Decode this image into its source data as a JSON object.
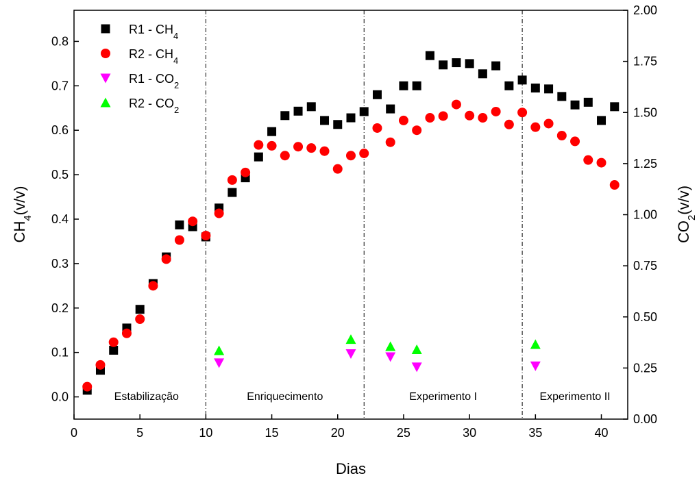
{
  "chart_data": {
    "type": "scatter",
    "xlabel": "Dias",
    "ylabel_left": "CH4(v/v)",
    "ylabel_right": "CO2(v/v)",
    "xlim": [
      0,
      42
    ],
    "ylim_left": [
      -0.05,
      0.87
    ],
    "ylim_right": [
      0,
      2.0
    ],
    "x_ticks": [
      0,
      5,
      10,
      15,
      20,
      25,
      30,
      35,
      40
    ],
    "y_left_ticks": [
      "0.0",
      "0.1",
      "0.2",
      "0.3",
      "0.4",
      "0.5",
      "0.6",
      "0.7",
      "0.8"
    ],
    "y_right_ticks": [
      "0.00",
      "0.25",
      "0.50",
      "0.75",
      "1.00",
      "1.25",
      "1.50",
      "1.75",
      "2.00"
    ],
    "legend_position": "top-left",
    "phase_dividers": [
      10,
      22,
      34
    ],
    "phases": [
      {
        "label": "Estabilização",
        "x": 5.5
      },
      {
        "label": "Enriquecimento",
        "x": 16
      },
      {
        "label": "Experimento I",
        "x": 28
      },
      {
        "label": "Experimento II",
        "x": 38
      }
    ],
    "series": [
      {
        "name": "R1 - CH4",
        "axis": "left",
        "marker": "square",
        "color": "#000000",
        "points": [
          [
            1,
            0.015
          ],
          [
            2,
            0.06
          ],
          [
            3,
            0.105
          ],
          [
            4,
            0.155
          ],
          [
            5,
            0.197
          ],
          [
            6,
            0.255
          ],
          [
            7,
            0.315
          ],
          [
            8,
            0.387
          ],
          [
            9,
            0.383
          ],
          [
            10,
            0.36
          ],
          [
            11,
            0.425
          ],
          [
            12,
            0.46
          ],
          [
            13,
            0.493
          ],
          [
            14,
            0.54
          ],
          [
            15,
            0.597
          ],
          [
            16,
            0.633
          ],
          [
            17,
            0.643
          ],
          [
            18,
            0.653
          ],
          [
            19,
            0.622
          ],
          [
            20,
            0.613
          ],
          [
            21,
            0.628
          ],
          [
            22,
            0.642
          ],
          [
            23,
            0.68
          ],
          [
            24,
            0.648
          ],
          [
            25,
            0.7
          ],
          [
            26,
            0.7
          ],
          [
            27,
            0.768
          ],
          [
            28,
            0.747
          ],
          [
            29,
            0.752
          ],
          [
            30,
            0.75
          ],
          [
            31,
            0.727
          ],
          [
            32,
            0.745
          ],
          [
            33,
            0.7
          ],
          [
            34,
            0.713
          ],
          [
            35,
            0.695
          ],
          [
            36,
            0.693
          ],
          [
            37,
            0.676
          ],
          [
            38,
            0.657
          ],
          [
            39,
            0.663
          ],
          [
            40,
            0.622
          ],
          [
            41,
            0.653
          ]
        ]
      },
      {
        "name": "R2 - CH4",
        "axis": "left",
        "marker": "circle",
        "color": "#ff0000",
        "points": [
          [
            1,
            0.023
          ],
          [
            2,
            0.072
          ],
          [
            3,
            0.123
          ],
          [
            4,
            0.143
          ],
          [
            5,
            0.175
          ],
          [
            6,
            0.25
          ],
          [
            7,
            0.31
          ],
          [
            8,
            0.353
          ],
          [
            9,
            0.395
          ],
          [
            10,
            0.363
          ],
          [
            11,
            0.413
          ],
          [
            12,
            0.488
          ],
          [
            13,
            0.505
          ],
          [
            14,
            0.567
          ],
          [
            15,
            0.565
          ],
          [
            16,
            0.543
          ],
          [
            17,
            0.563
          ],
          [
            18,
            0.56
          ],
          [
            19,
            0.553
          ],
          [
            20,
            0.513
          ],
          [
            21,
            0.543
          ],
          [
            22,
            0.548
          ],
          [
            23,
            0.605
          ],
          [
            24,
            0.573
          ],
          [
            25,
            0.622
          ],
          [
            26,
            0.6
          ],
          [
            27,
            0.628
          ],
          [
            28,
            0.632
          ],
          [
            29,
            0.658
          ],
          [
            30,
            0.633
          ],
          [
            31,
            0.628
          ],
          [
            32,
            0.642
          ],
          [
            33,
            0.613
          ],
          [
            34,
            0.64
          ],
          [
            35,
            0.607
          ],
          [
            36,
            0.615
          ],
          [
            37,
            0.588
          ],
          [
            38,
            0.575
          ],
          [
            39,
            0.533
          ],
          [
            40,
            0.527
          ],
          [
            41,
            0.477
          ]
        ]
      },
      {
        "name": "R1 - CO2",
        "axis": "right",
        "marker": "triangle-down",
        "color": "#ff00ff",
        "points": [
          [
            11,
            0.275
          ],
          [
            21,
            0.32
          ],
          [
            24,
            0.305
          ],
          [
            26,
            0.255
          ],
          [
            35,
            0.26
          ]
        ]
      },
      {
        "name": "R2 - CO2",
        "axis": "right",
        "marker": "triangle-up",
        "color": "#00ff00",
        "points": [
          [
            11,
            0.335
          ],
          [
            21,
            0.39
          ],
          [
            24,
            0.355
          ],
          [
            26,
            0.34
          ],
          [
            35,
            0.365
          ]
        ]
      }
    ]
  }
}
